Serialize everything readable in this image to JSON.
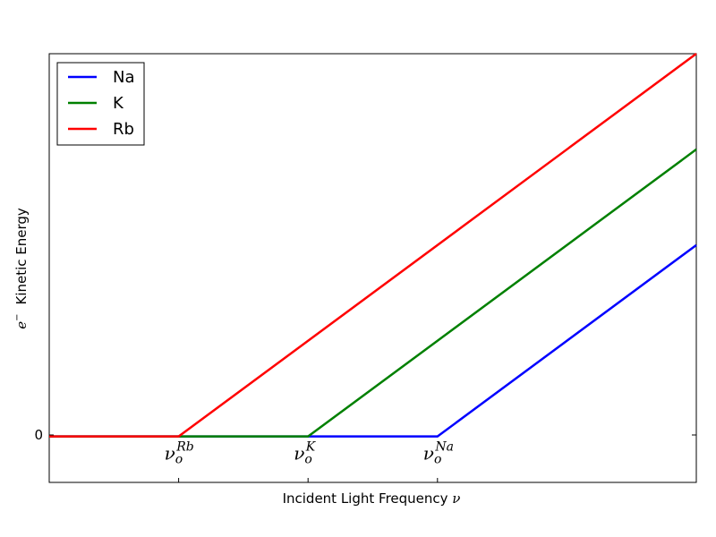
{
  "chart_data": {
    "type": "line",
    "xlabel_text": "Incident Light Frequency ",
    "xlabel_symbol": "ν",
    "ylabel_symbol": "e",
    "ylabel_symbol_sup": "−",
    "ylabel_text": "Kinetic Energy",
    "y_tick_label": "0",
    "x_ticks": [
      {
        "base": "ν",
        "sub": "o",
        "sup": "Rb",
        "x": 2
      },
      {
        "base": "ν",
        "sub": "o",
        "sup": "K",
        "x": 4
      },
      {
        "base": "ν",
        "sub": "o",
        "sup": "Na",
        "x": 6
      }
    ],
    "xlim": [
      0,
      10
    ],
    "ylim": [
      -0.72,
      6
    ],
    "grid": false,
    "legend_position": "top-left",
    "series": [
      {
        "name": "Na",
        "color": "#0000ff",
        "x": [
          0,
          6,
          10
        ],
        "y": [
          0,
          0,
          3
        ]
      },
      {
        "name": "K",
        "color": "#008000",
        "x": [
          0,
          4,
          10
        ],
        "y": [
          0,
          0,
          4.5
        ]
      },
      {
        "name": "Rb",
        "color": "#ff0000",
        "x": [
          0,
          2,
          10
        ],
        "y": [
          0,
          0,
          6
        ]
      }
    ]
  }
}
